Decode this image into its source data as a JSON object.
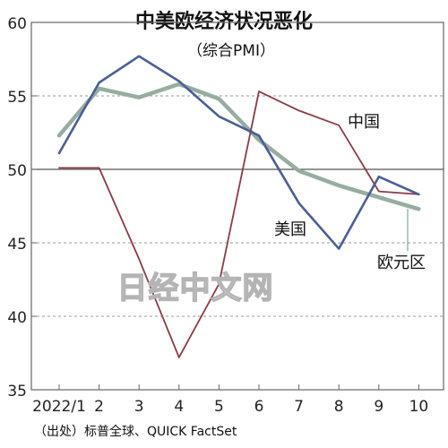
{
  "chart_data": {
    "type": "line",
    "title": "中美欧经济状况恶化",
    "subtitle": "（综合PMI）",
    "x": [
      "2022/1",
      "2",
      "3",
      "4",
      "5",
      "6",
      "7",
      "8",
      "9",
      "10"
    ],
    "ylim": [
      35,
      60
    ],
    "yticks": [
      35,
      40,
      45,
      50,
      55,
      60
    ],
    "grid": "horizontal-dashed",
    "reference_line": 50,
    "series": [
      {
        "name": "中国",
        "color": "#8b3a46",
        "values": [
          50.1,
          50.1,
          43.9,
          37.2,
          42.2,
          55.3,
          54.0,
          53.0,
          48.5,
          48.3
        ]
      },
      {
        "name": "美国",
        "color": "#4a5f96",
        "values": [
          51.1,
          55.9,
          57.7,
          56.0,
          53.6,
          52.3,
          47.7,
          44.6,
          49.5,
          48.3
        ]
      },
      {
        "name": "欧元区",
        "color": "#96ad9f",
        "values": [
          52.3,
          55.5,
          54.9,
          55.8,
          54.8,
          52.0,
          49.9,
          48.9,
          48.1,
          47.3
        ]
      }
    ],
    "watermark": "日经中文网",
    "source": "（出处）标普全球、QUICK FactSet"
  }
}
